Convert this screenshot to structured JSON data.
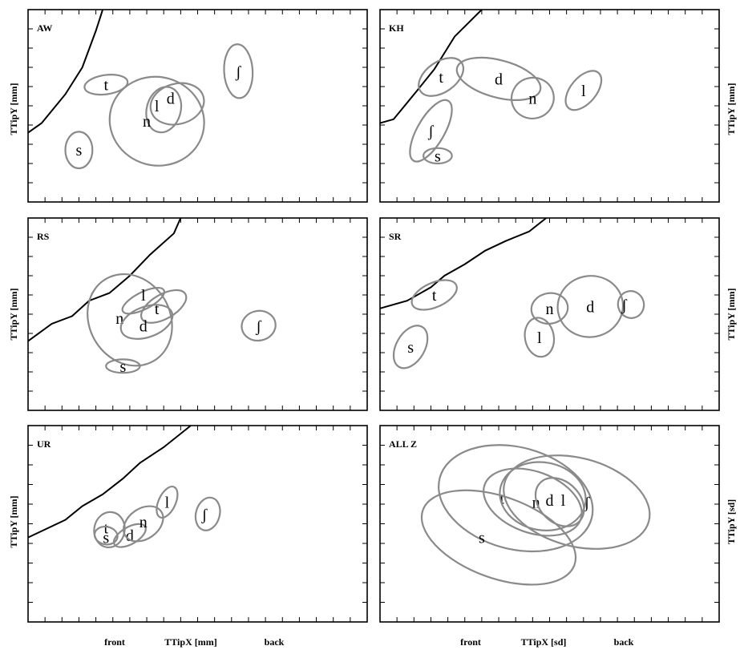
{
  "figure": {
    "x_axis_left": {
      "front": "front",
      "label": "TTipX [mm]",
      "back": "back"
    },
    "x_axis_right": {
      "front": "front",
      "label": "TTipX [sd]",
      "back": "back"
    },
    "y_axis_mm": "TTipY [mm]",
    "y_axis_sd": "TTipY [sd]"
  },
  "chart_data": [
    {
      "type": "scatter",
      "panel": "AW",
      "xlim": [
        0,
        100
      ],
      "ylim": [
        0,
        100
      ],
      "palate": [
        [
          0,
          36
        ],
        [
          4,
          41
        ],
        [
          11,
          56
        ],
        [
          16,
          70
        ],
        [
          20,
          89
        ],
        [
          22,
          100
        ]
      ],
      "ellipses": [
        {
          "label": "t",
          "x": 23,
          "y": 61,
          "rx": 6.4,
          "ry": 5,
          "angle": -8
        },
        {
          "label": "s",
          "x": 15,
          "y": 27,
          "rx": 4,
          "ry": 9.5,
          "angle": 0
        },
        {
          "label": "ʃ",
          "x": 62,
          "y": 68,
          "rx": 4.2,
          "ry": 14,
          "angle": -3
        },
        {
          "label": "d",
          "x": 44,
          "y": 51,
          "rx": 8,
          "ry": 10.5,
          "angle": -15
        },
        {
          "label": "l",
          "x": 40,
          "y": 48,
          "rx": 5,
          "ry": 12,
          "angle": 15
        },
        {
          "label": "n",
          "x": 38,
          "y": 42,
          "rx": 14,
          "ry": 23,
          "angle": 15
        }
      ],
      "glyph_pos": {
        "d": [
          42,
          54
        ],
        "l": [
          38,
          50
        ],
        "n": [
          35,
          42
        ]
      }
    },
    {
      "type": "scatter",
      "panel": "KH",
      "xlim": [
        0,
        100
      ],
      "ylim": [
        0,
        100
      ],
      "palate": [
        [
          0,
          41
        ],
        [
          4,
          43
        ],
        [
          11,
          58
        ],
        [
          16,
          69
        ],
        [
          22,
          86
        ],
        [
          30,
          100
        ]
      ],
      "ellipses": [
        {
          "label": "t",
          "x": 18,
          "y": 65,
          "rx": 4.5,
          "ry": 13,
          "angle": 55
        },
        {
          "label": "d",
          "x": 35,
          "y": 64,
          "rx": 12.7,
          "ry": 9.7,
          "angle": 15
        },
        {
          "label": "n",
          "x": 45,
          "y": 54,
          "rx": 6,
          "ry": 11,
          "angle": 75
        },
        {
          "label": "l",
          "x": 60,
          "y": 58,
          "rx": 3.8,
          "ry": 12,
          "angle": 40
        },
        {
          "label": "ʃ",
          "x": 15,
          "y": 37,
          "rx": 4,
          "ry": 18,
          "angle": 30
        },
        {
          "label": "s",
          "x": 17,
          "y": 24,
          "rx": 4.2,
          "ry": 4,
          "angle": 0
        }
      ],
      "glyph_pos": {
        "ʃ": [
          15,
          37
        ]
      }
    },
    {
      "type": "scatter",
      "panel": "RS",
      "xlim": [
        0,
        100
      ],
      "ylim": [
        0,
        100
      ],
      "palate": [
        [
          0,
          36
        ],
        [
          7,
          45
        ],
        [
          13,
          49
        ],
        [
          18,
          57
        ],
        [
          24,
          61
        ],
        [
          30,
          70
        ],
        [
          36,
          81
        ],
        [
          43,
          92
        ],
        [
          45,
          100
        ]
      ],
      "ellipses": [
        {
          "label": "l",
          "x": 34,
          "y": 57,
          "rx": 2.5,
          "ry": 12,
          "angle": 63
        },
        {
          "label": "t",
          "x": 40,
          "y": 54,
          "rx": 3.6,
          "ry": 13,
          "angle": 60
        },
        {
          "label": "n",
          "x": 30,
          "y": 47,
          "rx": 14,
          "ry": 21,
          "angle": 60
        },
        {
          "label": "d",
          "x": 35,
          "y": 46,
          "rx": 4.5,
          "ry": 14,
          "angle": 70
        },
        {
          "label": "ʃ",
          "x": 68,
          "y": 44,
          "rx": 5,
          "ry": 7.7,
          "angle": -10
        },
        {
          "label": "s",
          "x": 28,
          "y": 23,
          "rx": 5,
          "ry": 3.5,
          "angle": 0
        }
      ],
      "glyph_pos": {
        "l": [
          34,
          60
        ],
        "t": [
          38,
          53
        ],
        "n": [
          27,
          48
        ],
        "d": [
          34,
          44
        ]
      }
    },
    {
      "type": "scatter",
      "panel": "SR",
      "xlim": [
        0,
        100
      ],
      "ylim": [
        0,
        100
      ],
      "palate": [
        [
          0,
          53
        ],
        [
          8,
          57
        ],
        [
          15,
          64
        ],
        [
          19,
          70
        ],
        [
          25,
          76
        ],
        [
          31,
          83
        ],
        [
          37,
          88
        ],
        [
          44,
          93
        ],
        [
          49,
          100
        ]
      ],
      "ellipses": [
        {
          "label": "t",
          "x": 16,
          "y": 60,
          "rx": 3.6,
          "ry": 12.5,
          "angle": 66
        },
        {
          "label": "s",
          "x": 9,
          "y": 33,
          "rx": 4.2,
          "ry": 12,
          "angle": 30
        },
        {
          "label": "n",
          "x": 50,
          "y": 53,
          "rx": 4.5,
          "ry": 9.5,
          "angle": 80
        },
        {
          "label": "d",
          "x": 62,
          "y": 54,
          "rx": 9,
          "ry": 17,
          "angle": 80
        },
        {
          "label": "ʃ",
          "x": 74,
          "y": 55,
          "rx": 4,
          "ry": 6.7,
          "angle": 75
        },
        {
          "label": "l",
          "x": 47,
          "y": 38,
          "rx": 5.8,
          "ry": 7.5,
          "angle": 80
        }
      ],
      "glyph_pos": {
        "ʃ": [
          72,
          55
        ]
      }
    },
    {
      "type": "scatter",
      "panel": "UR",
      "xlim": [
        0,
        100
      ],
      "ylim": [
        0,
        100
      ],
      "palate": [
        [
          0,
          43
        ],
        [
          11,
          52
        ],
        [
          16,
          59
        ],
        [
          22,
          65
        ],
        [
          28,
          73
        ],
        [
          33,
          81
        ],
        [
          40,
          89
        ],
        [
          48,
          100
        ]
      ],
      "ellipses": [
        {
          "label": "t",
          "x": 24,
          "y": 47,
          "rx": 4.5,
          "ry": 9,
          "angle": 10
        },
        {
          "label": "s",
          "x": 23,
          "y": 44,
          "rx": 3.4,
          "ry": 4.5,
          "angle": 10
        },
        {
          "label": "d",
          "x": 30,
          "y": 44,
          "rx": 2.5,
          "ry": 9,
          "angle": 60
        },
        {
          "label": "n",
          "x": 34,
          "y": 50,
          "rx": 4.5,
          "ry": 11,
          "angle": 55
        },
        {
          "label": "l",
          "x": 41,
          "y": 61,
          "rx": 2.5,
          "ry": 8.5,
          "angle": 25
        },
        {
          "label": "ʃ",
          "x": 53,
          "y": 55,
          "rx": 3.5,
          "ry": 8.5,
          "angle": 15
        }
      ],
      "glyph_pos": {
        "t": [
          23,
          48
        ],
        "s": [
          23,
          43
        ],
        "d": [
          30,
          44
        ],
        "n": [
          34,
          51
        ],
        "l": [
          41,
          61
        ],
        "ʃ": [
          52,
          55
        ]
      }
    },
    {
      "type": "scatter",
      "panel": "ALL Z",
      "xlim": [
        0,
        100
      ],
      "ylim": [
        0,
        100
      ],
      "palate": [],
      "ellipses": [
        {
          "label": "t",
          "x": 40,
          "y": 63,
          "rx": 15,
          "ry": 40,
          "angle": -75
        },
        {
          "label": "s",
          "x": 35,
          "y": 43,
          "rx": 12,
          "ry": 41,
          "angle": -70
        },
        {
          "label": "ʃ",
          "x": 58,
          "y": 61,
          "rx": 13,
          "ry": 38,
          "angle": -75
        },
        {
          "label": "d",
          "x": 48,
          "y": 64,
          "rx": 10,
          "ry": 22,
          "angle": -80
        },
        {
          "label": "n",
          "x": 45,
          "y": 61,
          "rx": 9,
          "ry": 26,
          "angle": -70
        },
        {
          "label": "l",
          "x": 53,
          "y": 61,
          "rx": 6,
          "ry": 14,
          "angle": -45
        }
      ],
      "glyph_pos": {
        "t": [
          36,
          63
        ],
        "n": [
          46,
          61
        ],
        "d": [
          50,
          62
        ],
        "l": [
          54,
          62
        ],
        "ʃ": [
          61,
          61
        ],
        "s": [
          30,
          43
        ]
      }
    }
  ]
}
